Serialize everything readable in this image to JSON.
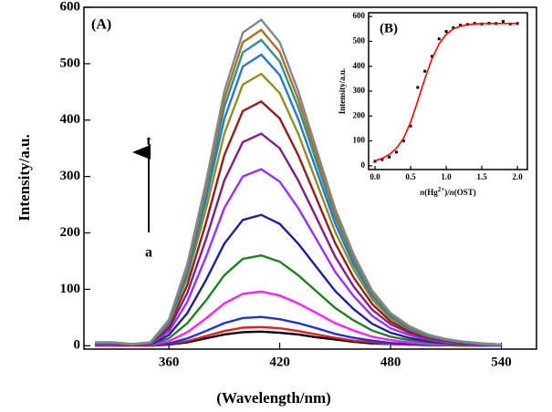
{
  "chart_data": [
    {
      "type": "line",
      "x_label": "(Wavelength/nm)",
      "y_label": "Intensity/a.u.",
      "annotations": [
        "(A)",
        "t",
        "a"
      ],
      "xlim": [
        314,
        559
      ],
      "ylim": [
        -6,
        600
      ],
      "xticks": [
        360,
        420,
        480,
        540
      ],
      "yticks": [
        0,
        100,
        200,
        300,
        400,
        500,
        600
      ],
      "x": [
        320,
        330,
        340,
        350,
        360,
        370,
        380,
        390,
        400,
        410,
        420,
        430,
        440,
        450,
        460,
        470,
        480,
        490,
        500,
        510,
        520,
        530,
        540
      ],
      "series": [
        {
          "color": "#000000",
          "values": [
            0,
            0,
            0,
            0,
            2,
            6,
            13,
            20,
            24,
            25,
            23,
            20,
            15,
            11,
            7,
            4,
            3,
            2,
            1,
            1,
            0,
            0,
            0
          ]
        },
        {
          "color": "#e02020",
          "values": [
            0,
            0,
            0,
            0,
            3,
            8,
            17,
            26,
            32,
            33,
            31,
            26,
            20,
            14,
            9,
            6,
            3,
            2,
            1,
            1,
            0,
            0,
            0
          ]
        },
        {
          "color": "#2030e0",
          "values": [
            1,
            1,
            0,
            1,
            4,
            13,
            26,
            40,
            49,
            51,
            47,
            40,
            31,
            21,
            14,
            9,
            5,
            3,
            2,
            1,
            1,
            0,
            0
          ]
        },
        {
          "color": "#ff20ff",
          "values": [
            1,
            1,
            0,
            1,
            8,
            24,
            48,
            75,
            92,
            96,
            89,
            75,
            58,
            40,
            27,
            16,
            10,
            6,
            3,
            2,
            1,
            1,
            0
          ]
        },
        {
          "color": "#208020",
          "values": [
            2,
            2,
            1,
            2,
            13,
            40,
            80,
            125,
            154,
            160,
            149,
            125,
            96,
            67,
            45,
            27,
            16,
            10,
            6,
            3,
            2,
            1,
            1
          ]
        },
        {
          "color": "#202090",
          "values": [
            2,
            2,
            1,
            2,
            19,
            58,
            116,
            181,
            223,
            232,
            216,
            181,
            139,
            97,
            65,
            39,
            23,
            14,
            8,
            5,
            3,
            2,
            1
          ]
        },
        {
          "color": "#9a30ff",
          "values": [
            3,
            3,
            2,
            3,
            25,
            78,
            157,
            244,
            300,
            313,
            291,
            244,
            188,
            131,
            88,
            53,
            31,
            19,
            11,
            6,
            4,
            2,
            1
          ]
        },
        {
          "color": "#802080",
          "values": [
            4,
            4,
            2,
            4,
            30,
            94,
            188,
            293,
            361,
            376,
            350,
            293,
            226,
            158,
            105,
            64,
            38,
            23,
            13,
            8,
            5,
            3,
            2
          ]
        },
        {
          "color": "#902020",
          "values": [
            4,
            4,
            2,
            4,
            35,
            108,
            217,
            338,
            416,
            433,
            403,
            338,
            260,
            182,
            121,
            74,
            43,
            26,
            15,
            9,
            5,
            3,
            2
          ]
        },
        {
          "color": "#909020",
          "values": [
            5,
            5,
            2,
            5,
            39,
            121,
            241,
            376,
            463,
            482,
            448,
            376,
            289,
            202,
            135,
            82,
            48,
            29,
            17,
            10,
            6,
            3,
            2
          ]
        },
        {
          "color": "#2878c8",
          "values": [
            5,
            5,
            3,
            5,
            41,
            129,
            258,
            402,
            495,
            516,
            480,
            402,
            310,
            217,
            144,
            88,
            52,
            31,
            18,
            10,
            6,
            4,
            2
          ]
        },
        {
          "color": "#309090",
          "values": [
            5,
            5,
            3,
            5,
            43,
            136,
            271,
            423,
            520,
            542,
            504,
            423,
            325,
            228,
            152,
            92,
            54,
            33,
            19,
            11,
            7,
            4,
            2
          ]
        },
        {
          "color": "#b07020",
          "values": [
            6,
            6,
            3,
            6,
            45,
            140,
            280,
            437,
            538,
            560,
            521,
            437,
            336,
            235,
            157,
            95,
            56,
            34,
            20,
            11,
            7,
            4,
            2
          ]
        },
        {
          "color": "#808890",
          "values": [
            6,
            6,
            3,
            6,
            46,
            145,
            289,
            451,
            555,
            578,
            538,
            451,
            347,
            243,
            162,
            98,
            58,
            35,
            20,
            12,
            7,
            4,
            2
          ]
        }
      ]
    },
    {
      "type": "scatter",
      "annotation": "(B)",
      "y_label": "Intensity/a.u.",
      "x_label_parts": [
        "n",
        "(Hg",
        "2+",
        ")/",
        "n",
        "(OST)"
      ],
      "xlim": [
        -0.09,
        2.14
      ],
      "ylim": [
        -15,
        615
      ],
      "xticks": [
        {
          "value": 0,
          "label": "0.0"
        },
        0.5,
        {
          "value": 1,
          "label": "1.0"
        },
        1.5,
        {
          "value": 2,
          "label": "2.0"
        }
      ],
      "yticks": [
        0,
        100,
        200,
        300,
        400,
        500,
        600
      ],
      "x": [
        0,
        0.1,
        0.2,
        0.3,
        0.4,
        0.5,
        0.6,
        0.7,
        0.8,
        0.9,
        1.0,
        1.1,
        1.2,
        1.3,
        1.4,
        1.5,
        1.6,
        1.7,
        1.8,
        1.9,
        2.0
      ],
      "series": [
        {
          "color": "#000000",
          "mode": "markers",
          "values": [
            18,
            25,
            35,
            55,
            100,
            160,
            315,
            380,
            440,
            510,
            540,
            555,
            565,
            568,
            572,
            570,
            573,
            572,
            580,
            570,
            572
          ]
        },
        {
          "color": "#ff0000",
          "mode": "line",
          "values": [
            20,
            30,
            45,
            70,
            110,
            175,
            260,
            350,
            430,
            490,
            528,
            550,
            561,
            567,
            570,
            571,
            572,
            572,
            572,
            572,
            572
          ]
        }
      ]
    }
  ]
}
